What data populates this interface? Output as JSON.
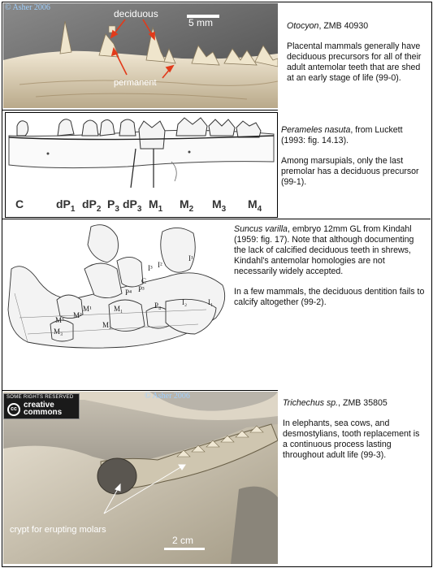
{
  "panel1": {
    "copyright": "© Asher 2006",
    "label_deciduous": "deciduous",
    "label_permanent": "permanent",
    "scale": "5 mm",
    "caption_taxon": "Otocyon",
    "caption_rest": ", ZMB 40930",
    "body": "Placental mammals generally have deciduous precursors for all of their adult antemolar teeth that are shed at an early stage of life (99-0)."
  },
  "panel2": {
    "caption_taxon": "Perameles nasuta",
    "caption_rest": ", from Luckett (1993: fig. 14.13).",
    "body": "Among marsupials, only the last premolar has a deciduous precursor (99-1).",
    "teeth": [
      {
        "base": "C",
        "sub": ""
      },
      {
        "base": "dP",
        "sub": "1"
      },
      {
        "base": "dP",
        "sub": "2"
      },
      {
        "base": "P",
        "sub": "3"
      },
      {
        "base": "dP",
        "sub": "3"
      },
      {
        "base": "M",
        "sub": "1"
      },
      {
        "base": "M",
        "sub": "2"
      },
      {
        "base": "M",
        "sub": "3"
      },
      {
        "base": "M",
        "sub": "4"
      }
    ]
  },
  "panel3": {
    "caption_taxon": "Suncus varilla",
    "caption_rest": ", embryo 12mm GL from Kindahl (1959: fig. 17). Note that although documenting the lack of calcified deciduous teeth in shrews, Kindahl's antemolar homologies are not necessarily widely accepted.",
    "body": "In a few mammals, the deciduous dentition fails to calcify altogether (99-2).",
    "sketch_labels": [
      "I¹",
      "I²",
      "I³",
      "C",
      "P³",
      "P⁴",
      "M¹",
      "M²",
      "M³",
      "M₁",
      "M₂",
      "M₃",
      "P₄",
      "I₂",
      "I₁"
    ]
  },
  "panel4": {
    "cc_top": "SOME RIGHTS RESERVED",
    "cc_word1": "creative",
    "cc_word2": "commons",
    "cc_mark": "cc",
    "copyright": "© Asher 2006",
    "caption_taxon": "Trichechus sp.",
    "caption_rest": ", ZMB 35805",
    "body": "In elephants, sea cows, and desmostylians, tooth replacement is a continuous process lasting throughout adult life (99-3).",
    "label_crypt": "crypt for erupting molars",
    "scale": "2 cm"
  }
}
